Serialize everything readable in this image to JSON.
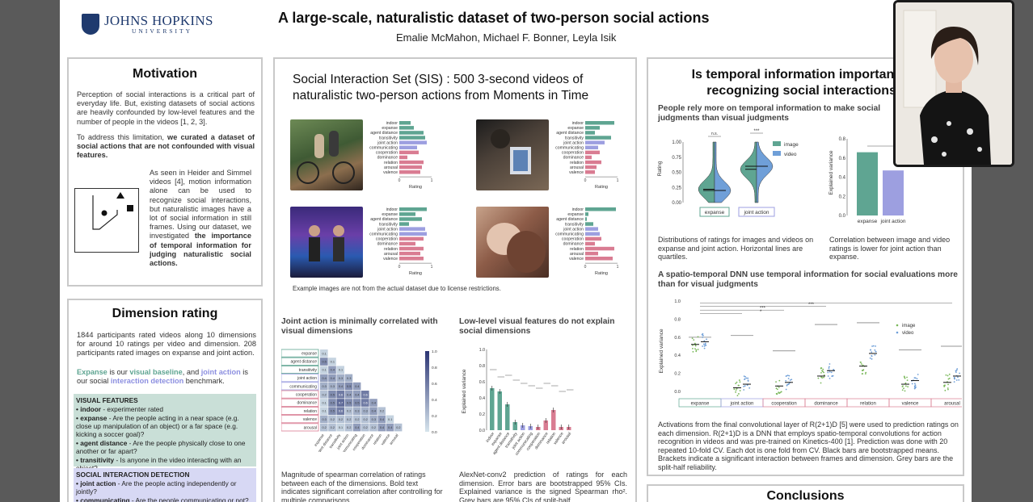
{
  "poster": {
    "logo": {
      "line1": "JOHNS HOPKINS",
      "line2": "UNIVERSITY"
    },
    "title": "A large-scale, naturalistic dataset of two-person social actions",
    "authors": "Emalie McMahon, Michael F. Bonner, Leyla Isik"
  },
  "motivation": {
    "heading": "Motivation",
    "p1": "Perception of social interactions is a critical part of everyday life. But, existing datasets of social actions are heavily confounded by low-level features and the number of people in the videos [1, 2, 3].",
    "p2_a": "To address this limitation, ",
    "p2_b": "we curated a dataset of social actions that are not confounded with visual features.",
    "p3_a": "As seen in Heider and Simmel videos [4], motion information alone can be used to recognize social interactions, but naturalistic images have a lot of social information in still frames. Using our dataset, we investigated ",
    "p3_b": "the importance of temporal information for judging naturalistic social actions."
  },
  "dimension": {
    "heading": "Dimension rating",
    "p1": "1844 participants rated videos along 10 dimensions for around 10 ratings per video and dimension. 208 participants rated images on expanse and joint action.",
    "p2_a": "Expanse",
    "p2_b": " is our ",
    "p2_c": "visual baseline",
    "p2_d": ", and ",
    "p2_e": "joint action",
    "p2_f": " is our social ",
    "p2_g": "interaction detection",
    "p2_h": " benchmark.",
    "visual_title": "VISUAL FEATURES",
    "visual_items": [
      {
        "term": "indoor",
        "desc": " - experimenter rated"
      },
      {
        "term": "expanse",
        "desc": " - Are the people acting in a near space (e.g. close up manipulation of an object) or a far space (e.g. kicking a soccer goal)?"
      },
      {
        "term": "agent distance",
        "desc": " - Are the people physically close to one another or far apart?"
      },
      {
        "term": "transitivity",
        "desc": " - Is anyone in the video interacting with an object?"
      }
    ],
    "social_title": "SOCIAL INTERACTION DETECTION",
    "social_items": [
      {
        "term": "joint action",
        "desc": " - Are the people acting independently or jointly?"
      },
      {
        "term": "communicating",
        "desc": " - Are the people communicating or not?"
      }
    ]
  },
  "sis": {
    "title": "Social Interaction Set (SIS) : 500 3-second videos of naturalistic two-person actions from Moments in Time",
    "dims": [
      "indoor",
      "expanse",
      "agent distance",
      "transitivity",
      "joint action",
      "communicating",
      "cooperation",
      "dominance",
      "relation",
      "arousal",
      "valence"
    ],
    "xlabel": "Rating",
    "tick0": "0",
    "tick1": "1",
    "note": "Example images are not from the actual dataset due to license restrictions.",
    "colors": {
      "visual": "#5fa592",
      "social": "#9d9fe0",
      "affective": "#d97c92"
    }
  },
  "joint": {
    "heading": "Joint action is minimally correlated with visual dimensions",
    "rows": [
      "expanse",
      "agent distance",
      "transitivity",
      "joint action",
      "communicating",
      "cooperation",
      "dominance",
      "relation",
      "valence",
      "arousal"
    ],
    "cbar": [
      "1.0",
      "0.8",
      "0.6",
      "0.4",
      "0.2",
      "0.0"
    ],
    "caption": "Magnitude of spearman correlation of ratings between each of the dimensions. Bold text indicates significant correlation after controlling for multiple comparisons."
  },
  "lowlevel": {
    "heading": "Low-level visual features do not explain social dimensions",
    "caption": "AlexNet-conv2 prediction of ratings for each dimension. Error bars are bootstrapped 95% CIs. Explained variance is the signed Spearman rho². Grey bars are 95% CIs of split-half"
  },
  "temporal": {
    "heading": "Is temporal information important for recognizing social interactions?",
    "sub1": "People rely more on temporal information to make social judgments than visual judgments",
    "cap1": "Distributions of ratings for images and videos on expanse and joint action. Horizontal lines are quartiles.",
    "cap2": "Correlation between image and video ratings is lower for joint action than expanse.",
    "sub2": "A spatio-temporal DNN use temporal information for social evaluations more than for visual judgments",
    "cap3": "Activations from the final convolutional layer of R(2+1)D [5] were used to prediction ratings on each dimension. R(2+1)D is a DNN that employs spatio-temporal convolutions for action recognition in videos and was pre-trained on Kinetics-400 [1]. Prediction was done with 20 repeated 10-fold CV. Each dot is one fold from CV. Black bars are bootstrapped means. Brackets indicate a significant interaction between frames and dimension. Grey bars are the split-half reliability."
  },
  "conclusions": {
    "heading": "Conclusions"
  },
  "chart_data": [
    {
      "type": "bar",
      "title": "",
      "xlabel": "Rating",
      "ylabel": "",
      "categories": [
        "indoor",
        "expanse",
        "agent distance",
        "transitivity",
        "joint action",
        "communicating",
        "cooperation",
        "dominance",
        "relation",
        "arousal",
        "valence"
      ],
      "values": [
        0.35,
        0.45,
        0.75,
        0.8,
        0.85,
        0.55,
        0.6,
        0.25,
        0.75,
        0.7,
        0.65
      ],
      "xlim": [
        0,
        1
      ]
    },
    {
      "type": "bar",
      "title": "",
      "xlabel": "Rating",
      "ylabel": "",
      "categories": [
        "indoor",
        "expanse",
        "agent distance",
        "transitivity",
        "joint action",
        "communicating",
        "cooperation",
        "dominance",
        "relation",
        "arousal",
        "valence"
      ],
      "values": [
        0.9,
        0.45,
        0.3,
        0.8,
        0.6,
        0.4,
        0.45,
        0.2,
        0.5,
        0.35,
        0.3
      ],
      "xlim": [
        0,
        1
      ]
    },
    {
      "type": "bar",
      "title": "",
      "xlabel": "Rating",
      "ylabel": "",
      "categories": [
        "indoor",
        "expanse",
        "agent distance",
        "transitivity",
        "joint action",
        "communicating",
        "cooperation",
        "dominance",
        "relation",
        "arousal",
        "valence"
      ],
      "values": [
        0.85,
        0.5,
        0.7,
        0.3,
        0.8,
        0.85,
        0.75,
        0.5,
        0.75,
        0.65,
        0.75
      ],
      "xlim": [
        0,
        1
      ]
    },
    {
      "type": "bar",
      "title": "",
      "xlabel": "Rating",
      "ylabel": "",
      "categories": [
        "indoor",
        "expanse",
        "agent distance",
        "transitivity",
        "joint action",
        "communicating",
        "cooperation",
        "dominance",
        "relation",
        "arousal",
        "valence"
      ],
      "values": [
        0.95,
        0.1,
        0.05,
        0.25,
        0.4,
        0.45,
        0.5,
        0.3,
        0.9,
        0.4,
        0.85
      ],
      "xlim": [
        0,
        1
      ]
    },
    {
      "type": "bar",
      "title": "",
      "xlabel": "",
      "ylabel": "Explained variance",
      "categories": [
        "indoor",
        "expanse",
        "agent distance",
        "transitivity",
        "joint action",
        "communicating",
        "cooperation",
        "dominance",
        "relation",
        "valence",
        "arousal"
      ],
      "values": [
        0.52,
        0.48,
        0.32,
        0.1,
        0.06,
        0.05,
        0.04,
        0.12,
        0.25,
        0.04,
        0.04
      ],
      "ylim": [
        0,
        1.0
      ]
    },
    {
      "type": "bar",
      "title": "",
      "xlabel": "",
      "ylabel": "Explained variance",
      "categories": [
        "expanse",
        "joint action"
      ],
      "values": [
        0.66,
        0.47
      ],
      "ylim": [
        0,
        0.8
      ]
    },
    {
      "type": "scatter",
      "title": "",
      "xlabel": "",
      "ylabel": "Explained variance",
      "categories": [
        "expanse",
        "joint action",
        "cooperation",
        "dominance",
        "relation",
        "valence",
        "arousal"
      ],
      "series": [
        {
          "name": "image",
          "values": [
            0.52,
            0.04,
            0.06,
            0.17,
            0.28,
            0.08,
            0.1
          ]
        },
        {
          "name": "video",
          "values": [
            0.55,
            0.08,
            0.1,
            0.23,
            0.42,
            0.12,
            0.17
          ]
        }
      ],
      "ylim": [
        0,
        1.0
      ]
    },
    {
      "type": "heatmap",
      "title": "",
      "categories": [
        "expanse",
        "agent distance",
        "transitivity",
        "joint action",
        "communicating",
        "cooperation",
        "dominance",
        "relation",
        "valence",
        "arousal"
      ],
      "values": [
        [
          0.1
        ],
        [
          0.5,
          0.1
        ],
        [
          0.1,
          0.4,
          0.1
        ],
        [
          0.4,
          0.4,
          0.3,
          0.3
        ],
        [
          0.3,
          0.3,
          0.4,
          0.5,
          0.4
        ],
        [
          0.2,
          0.5,
          0.6,
          0.4,
          0.4,
          0.6
        ],
        [
          0.1,
          0.5,
          0.7,
          0.5,
          0.5,
          0.6,
          0.4
        ],
        [
          0.1,
          0.5,
          0.6,
          0.2,
          0.3,
          0.3,
          0.4,
          0.2
        ],
        [
          0.3,
          0.2,
          0.2,
          0.2,
          0.2,
          0.2,
          0.3,
          0.4,
          0.1
        ],
        [
          0.2,
          0.2,
          0.1,
          0.2,
          0.4,
          0.2,
          0.2,
          0.4,
          0.4,
          0.2
        ]
      ]
    }
  ]
}
